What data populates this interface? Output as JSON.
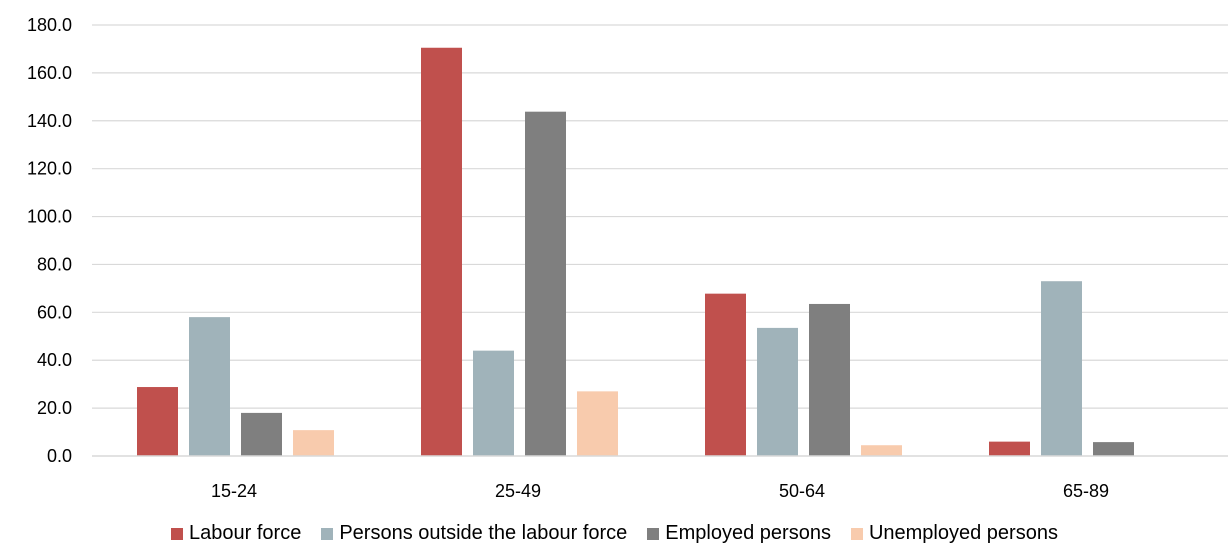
{
  "chart_data": {
    "type": "bar",
    "categories": [
      "15-24",
      "25-49",
      "50-64",
      "65-89"
    ],
    "series": [
      {
        "name": "Labour force",
        "values": [
          28.8,
          170.5,
          67.8,
          6.0
        ],
        "color": "#C0504D"
      },
      {
        "name": "Persons outside the labour force",
        "values": [
          58.0,
          44.0,
          53.5,
          73.0
        ],
        "color": "#A0B3BA"
      },
      {
        "name": "Employed persons",
        "values": [
          18.0,
          143.8,
          63.5,
          5.8
        ],
        "color": "#7F7F7F"
      },
      {
        "name": "Unemployed persons",
        "values": [
          10.8,
          27.0,
          4.5,
          0.0
        ],
        "color": "#F8CBAD"
      }
    ],
    "y_ticks": [
      "0.0",
      "20.0",
      "40.0",
      "60.0",
      "80.0",
      "100.0",
      "120.0",
      "140.0",
      "160.0",
      "180.0"
    ],
    "ylim": [
      0,
      180
    ],
    "grid": true,
    "legend_position": "bottom",
    "title": "",
    "xlabel": "",
    "ylabel": ""
  }
}
